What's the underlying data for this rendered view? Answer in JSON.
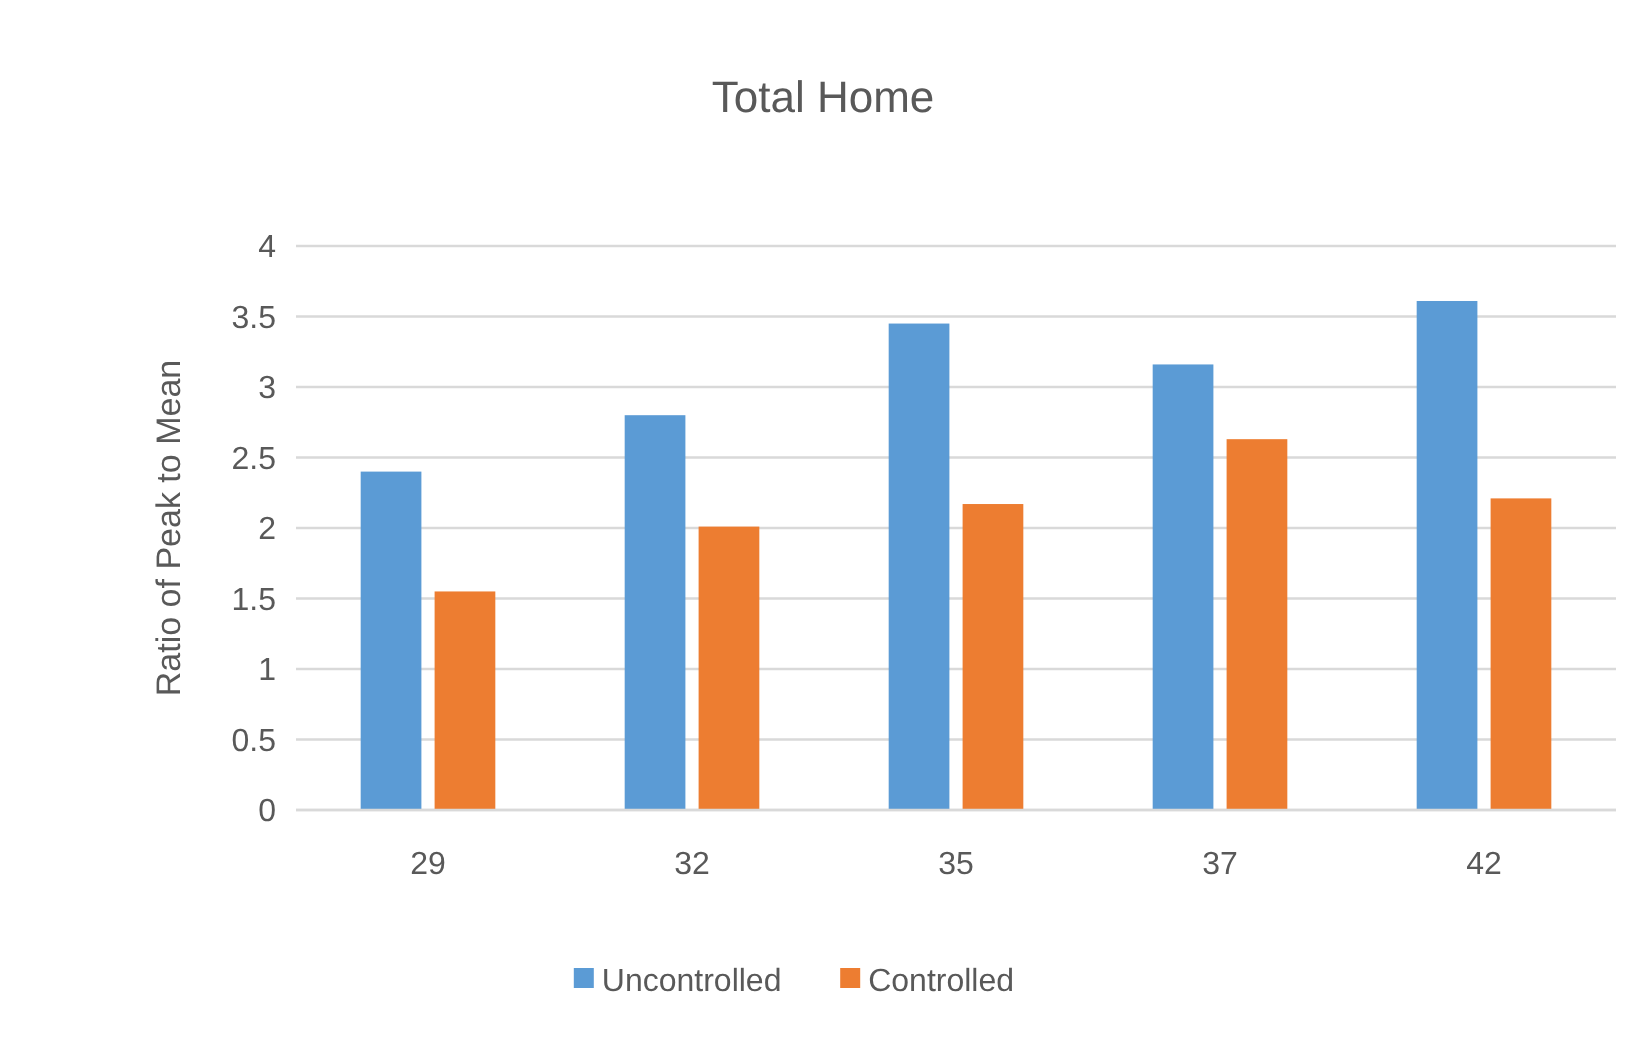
{
  "chart_data": {
    "type": "bar",
    "title": "Total Home",
    "ylabel": "Ratio of Peak to Mean",
    "categories": [
      "29",
      "32",
      "35",
      "37",
      "42"
    ],
    "series": [
      {
        "name": "Uncontrolled",
        "color": "#5b9bd5",
        "values": [
          2.4,
          2.8,
          3.45,
          3.16,
          3.61
        ]
      },
      {
        "name": "Controlled",
        "color": "#ed7d31",
        "values": [
          1.55,
          2.01,
          2.17,
          2.63,
          2.21
        ]
      }
    ],
    "ylim": [
      0,
      4
    ],
    "yticks": [
      0,
      0.5,
      1,
      1.5,
      2,
      2.5,
      3,
      3.5,
      4
    ],
    "grid": "y",
    "legend": "bottom"
  }
}
